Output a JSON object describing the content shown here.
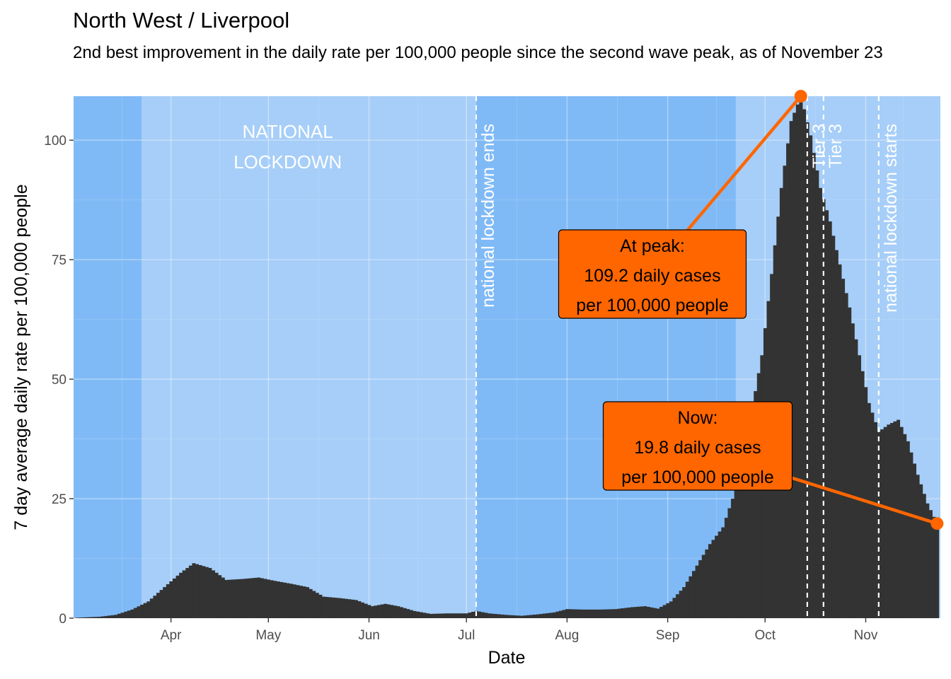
{
  "title": "North West / Liverpool",
  "subtitle": "2nd best improvement in the daily rate per 100,000 people since the second wave peak, as of November 23",
  "colors": {
    "bar": "#333333",
    "accent": "#ff6600",
    "band_dark": "#80baf6",
    "band_light": "#a6cef8",
    "event_line": "#ffffff"
  },
  "chart_data": {
    "type": "bar",
    "xlabel": "Date",
    "ylabel": "7 day average daily rate per 100,000 people",
    "x_start": "2020-03-03",
    "x_end": "2020-11-23",
    "xlim": [
      "2020-03-02",
      "2020-11-24"
    ],
    "ylim": [
      0,
      109.2
    ],
    "y_ticks": [
      0,
      25,
      50,
      75,
      100
    ],
    "x_ticks": [
      {
        "date": "2020-04-01",
        "label": "Apr"
      },
      {
        "date": "2020-05-01",
        "label": "May"
      },
      {
        "date": "2020-06-01",
        "label": "Jun"
      },
      {
        "date": "2020-07-01",
        "label": "Jul"
      },
      {
        "date": "2020-08-01",
        "label": "Aug"
      },
      {
        "date": "2020-09-01",
        "label": "Sep"
      },
      {
        "date": "2020-10-01",
        "label": "Oct"
      },
      {
        "date": "2020-11-01",
        "label": "Nov"
      }
    ],
    "grid": true,
    "background_bands": [
      {
        "from": "2020-03-02",
        "to": "2020-03-23",
        "shade": "dark"
      },
      {
        "from": "2020-03-23",
        "to": "2020-07-04",
        "shade": "light",
        "label": [
          "NATIONAL",
          "LOCKDOWN"
        ]
      },
      {
        "from": "2020-07-04",
        "to": "2020-09-22",
        "shade": "dark"
      },
      {
        "from": "2020-09-22",
        "to": "2020-11-24",
        "shade": "light"
      }
    ],
    "events": [
      {
        "date": "2020-07-04",
        "label": "national lockdown ends"
      },
      {
        "date": "2020-10-14",
        "label": "Tier 3"
      },
      {
        "date": "2020-10-19",
        "label": "Tier 3"
      },
      {
        "date": "2020-11-05",
        "label": "national lockdown starts"
      }
    ],
    "series_keypoints": [
      [
        "2020-03-03",
        0.1
      ],
      [
        "2020-03-10",
        0.3
      ],
      [
        "2020-03-15",
        0.7
      ],
      [
        "2020-03-20",
        1.8
      ],
      [
        "2020-03-25",
        3.5
      ],
      [
        "2020-03-30",
        6.5
      ],
      [
        "2020-04-04",
        9.5
      ],
      [
        "2020-04-08",
        11.5
      ],
      [
        "2020-04-13",
        10.5
      ],
      [
        "2020-04-18",
        8.0
      ],
      [
        "2020-04-23",
        8.2
      ],
      [
        "2020-04-28",
        8.5
      ],
      [
        "2020-05-03",
        7.8
      ],
      [
        "2020-05-08",
        7.2
      ],
      [
        "2020-05-13",
        6.5
      ],
      [
        "2020-05-18",
        4.5
      ],
      [
        "2020-05-23",
        4.2
      ],
      [
        "2020-05-28",
        3.8
      ],
      [
        "2020-06-02",
        2.5
      ],
      [
        "2020-06-06",
        3.0
      ],
      [
        "2020-06-10",
        2.5
      ],
      [
        "2020-06-15",
        1.5
      ],
      [
        "2020-06-20",
        0.9
      ],
      [
        "2020-06-25",
        1.0
      ],
      [
        "2020-07-01",
        1.0
      ],
      [
        "2020-07-04",
        1.5
      ],
      [
        "2020-07-08",
        1.0
      ],
      [
        "2020-07-13",
        0.7
      ],
      [
        "2020-07-18",
        0.5
      ],
      [
        "2020-07-23",
        0.8
      ],
      [
        "2020-07-28",
        1.2
      ],
      [
        "2020-08-01",
        1.9
      ],
      [
        "2020-08-06",
        1.8
      ],
      [
        "2020-08-11",
        1.8
      ],
      [
        "2020-08-16",
        1.9
      ],
      [
        "2020-08-21",
        2.3
      ],
      [
        "2020-08-25",
        2.5
      ],
      [
        "2020-08-29",
        2.0
      ],
      [
        "2020-09-02",
        3.5
      ],
      [
        "2020-09-06",
        6.5
      ],
      [
        "2020-09-10",
        11.0
      ],
      [
        "2020-09-14",
        15.5
      ],
      [
        "2020-09-18",
        19.0
      ],
      [
        "2020-09-22",
        27.0
      ],
      [
        "2020-09-26",
        40.0
      ],
      [
        "2020-09-30",
        55.0
      ],
      [
        "2020-10-03",
        72.0
      ],
      [
        "2020-10-06",
        90.0
      ],
      [
        "2020-10-09",
        104.0
      ],
      [
        "2020-10-12",
        109.2
      ],
      [
        "2020-10-15",
        101.0
      ],
      [
        "2020-10-18",
        90.0
      ],
      [
        "2020-10-21",
        83.0
      ],
      [
        "2020-10-24",
        74.0
      ],
      [
        "2020-10-27",
        65.0
      ],
      [
        "2020-10-30",
        55.0
      ],
      [
        "2020-11-02",
        45.0
      ],
      [
        "2020-11-05",
        39.0
      ],
      [
        "2020-11-08",
        40.5
      ],
      [
        "2020-11-11",
        41.5
      ],
      [
        "2020-11-14",
        37.0
      ],
      [
        "2020-11-17",
        30.0
      ],
      [
        "2020-11-20",
        24.0
      ],
      [
        "2020-11-23",
        19.8
      ]
    ],
    "annotations": [
      {
        "id": "peak",
        "date": "2020-10-12",
        "value": 109.2,
        "lines": [
          "At peak:",
          "109.2 daily cases",
          "per 100,000 people"
        ]
      },
      {
        "id": "now",
        "date": "2020-11-23",
        "value": 19.8,
        "lines": [
          "Now:",
          "19.8 daily cases",
          "per 100,000 people"
        ]
      }
    ]
  }
}
